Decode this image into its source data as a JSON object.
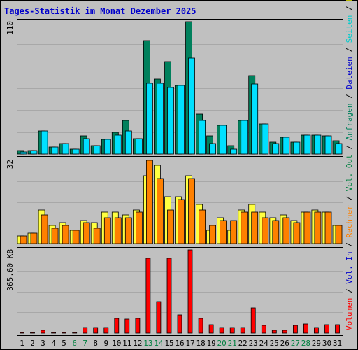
{
  "chart_data": {
    "title": "Tages-Statistik im Monat Dezember 2025",
    "days": [
      "1",
      "2",
      "3",
      "4",
      "5",
      "6",
      "7",
      "8",
      "9",
      "10",
      "11",
      "12",
      "13",
      "14",
      "15",
      "16",
      "17",
      "18",
      "19",
      "20",
      "21",
      "22",
      "23",
      "24",
      "25",
      "26",
      "27",
      "28",
      "29",
      "30",
      "31"
    ],
    "weekend_days": [
      "6",
      "7",
      "13",
      "14",
      "20",
      "21",
      "27",
      "28"
    ],
    "weekend_color": "#008040",
    "weekday_color": "#000000",
    "panels": [
      {
        "name": "requests-files",
        "type": "bar",
        "ytick": "110",
        "ymax": 110,
        "series": [
          {
            "label": "Anfragen",
            "color": "#00805c",
            "values": [
              3,
              3,
              19,
              6,
              9,
              4,
              15,
              7,
              12,
              18,
              28,
              13,
              94,
              62,
              77,
              57,
              110,
              33,
              15,
              24,
              7,
              28,
              65,
              25,
              10,
              14,
              10,
              16,
              16,
              15,
              11
            ]
          },
          {
            "label": "Dateien",
            "color": "#00e0ff",
            "values": [
              2,
              3,
              19,
              6,
              9,
              4,
              13,
              7,
              12,
              16,
              19,
              13,
              59,
              59,
              55,
              57,
              80,
              28,
              9,
              24,
              4,
              28,
              58,
              25,
              9,
              14,
              10,
              16,
              16,
              15,
              9
            ]
          }
        ],
        "legend": [
          {
            "text": "Anfragen",
            "color": "#00805c"
          },
          {
            "text": " / ",
            "color": "#000000"
          },
          {
            "text": "Dateien",
            "color": "#0000cc"
          },
          {
            "text": " / ",
            "color": "#000000"
          },
          {
            "text": "Seiten",
            "color": "#00cccc"
          },
          {
            "text": " / ",
            "color": "#000000"
          },
          {
            "text": "Besuche",
            "color": "#cccc00"
          }
        ]
      },
      {
        "name": "visits-hosts",
        "type": "bar",
        "ytick": "32",
        "ymax": 32,
        "series": [
          {
            "label": "Besuche",
            "color": "#ffff40",
            "values": [
              3,
              4,
              13,
              7,
              8,
              5,
              9,
              8,
              12,
              12,
              11,
              13,
              26,
              30,
              18,
              18,
              26,
              15,
              5,
              10,
              5,
              13,
              15,
              12,
              10,
              11,
              9,
              12,
              13,
              12,
              7
            ]
          },
          {
            "label": "Rechner",
            "color": "#ff8000",
            "values": [
              3,
              4,
              11,
              6,
              7,
              5,
              8,
              6,
              10,
              10,
              10,
              12,
              32,
              25,
              13,
              17,
              25,
              13,
              7,
              9,
              9,
              12,
              12,
              10,
              9,
              10,
              8,
              12,
              12,
              12,
              7
            ]
          }
        ],
        "legend": [
          {
            "text": "Rechner",
            "color": "#ff8000"
          },
          {
            "text": " / ",
            "color": "#000000"
          },
          {
            "text": "Vol. Out",
            "color": "#008040"
          },
          {
            "text": " / ",
            "color": "#000000"
          }
        ]
      },
      {
        "name": "volume",
        "type": "bar",
        "ytick": "365.60 KB",
        "ymax": 365.6,
        "series": [
          {
            "label": "Volumen",
            "color": "#ff0000",
            "values": [
              2,
              2,
              13,
              4,
              4,
              4,
              26,
              26,
              26,
              66,
              62,
              66,
              330,
              137,
              330,
              79,
              365.6,
              66,
              37,
              26,
              26,
              24,
              110,
              33,
              13,
              13,
              33,
              40,
              26,
              37,
              37
            ]
          }
        ],
        "legend": [
          {
            "text": "Volumen",
            "color": "#ff0000"
          },
          {
            "text": " / ",
            "color": "#000000"
          },
          {
            "text": "Vol. In",
            "color": "#0000cc"
          },
          {
            "text": " / ",
            "color": "#000000"
          }
        ]
      }
    ]
  }
}
